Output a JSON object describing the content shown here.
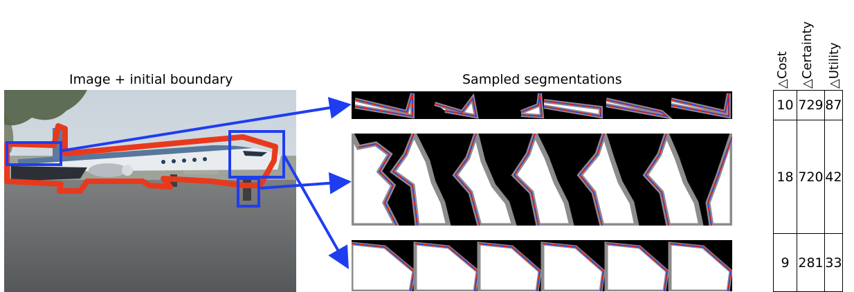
{
  "captions": {
    "left": "Image + initial boundary",
    "middle": "Sampled segmentations"
  },
  "columns": [
    "△Cost",
    "△Certainty",
    "△Utility"
  ],
  "rows": [
    {
      "cost": "10",
      "certainty": "729",
      "utility": "87"
    },
    {
      "cost": "18",
      "certainty": "720",
      "utility": "42"
    },
    {
      "cost": "9",
      "certainty": "281",
      "utility": "33"
    }
  ],
  "colors": {
    "boundary": "#e8391c",
    "highlight_box": "#1f3df0",
    "arrow": "#1f3df0",
    "segment_line": "#3b3bd6",
    "segment_dash": "#e21b1b",
    "segment_halo": "#8c8c8c"
  },
  "samples_per_row": [
    6,
    6,
    6
  ]
}
